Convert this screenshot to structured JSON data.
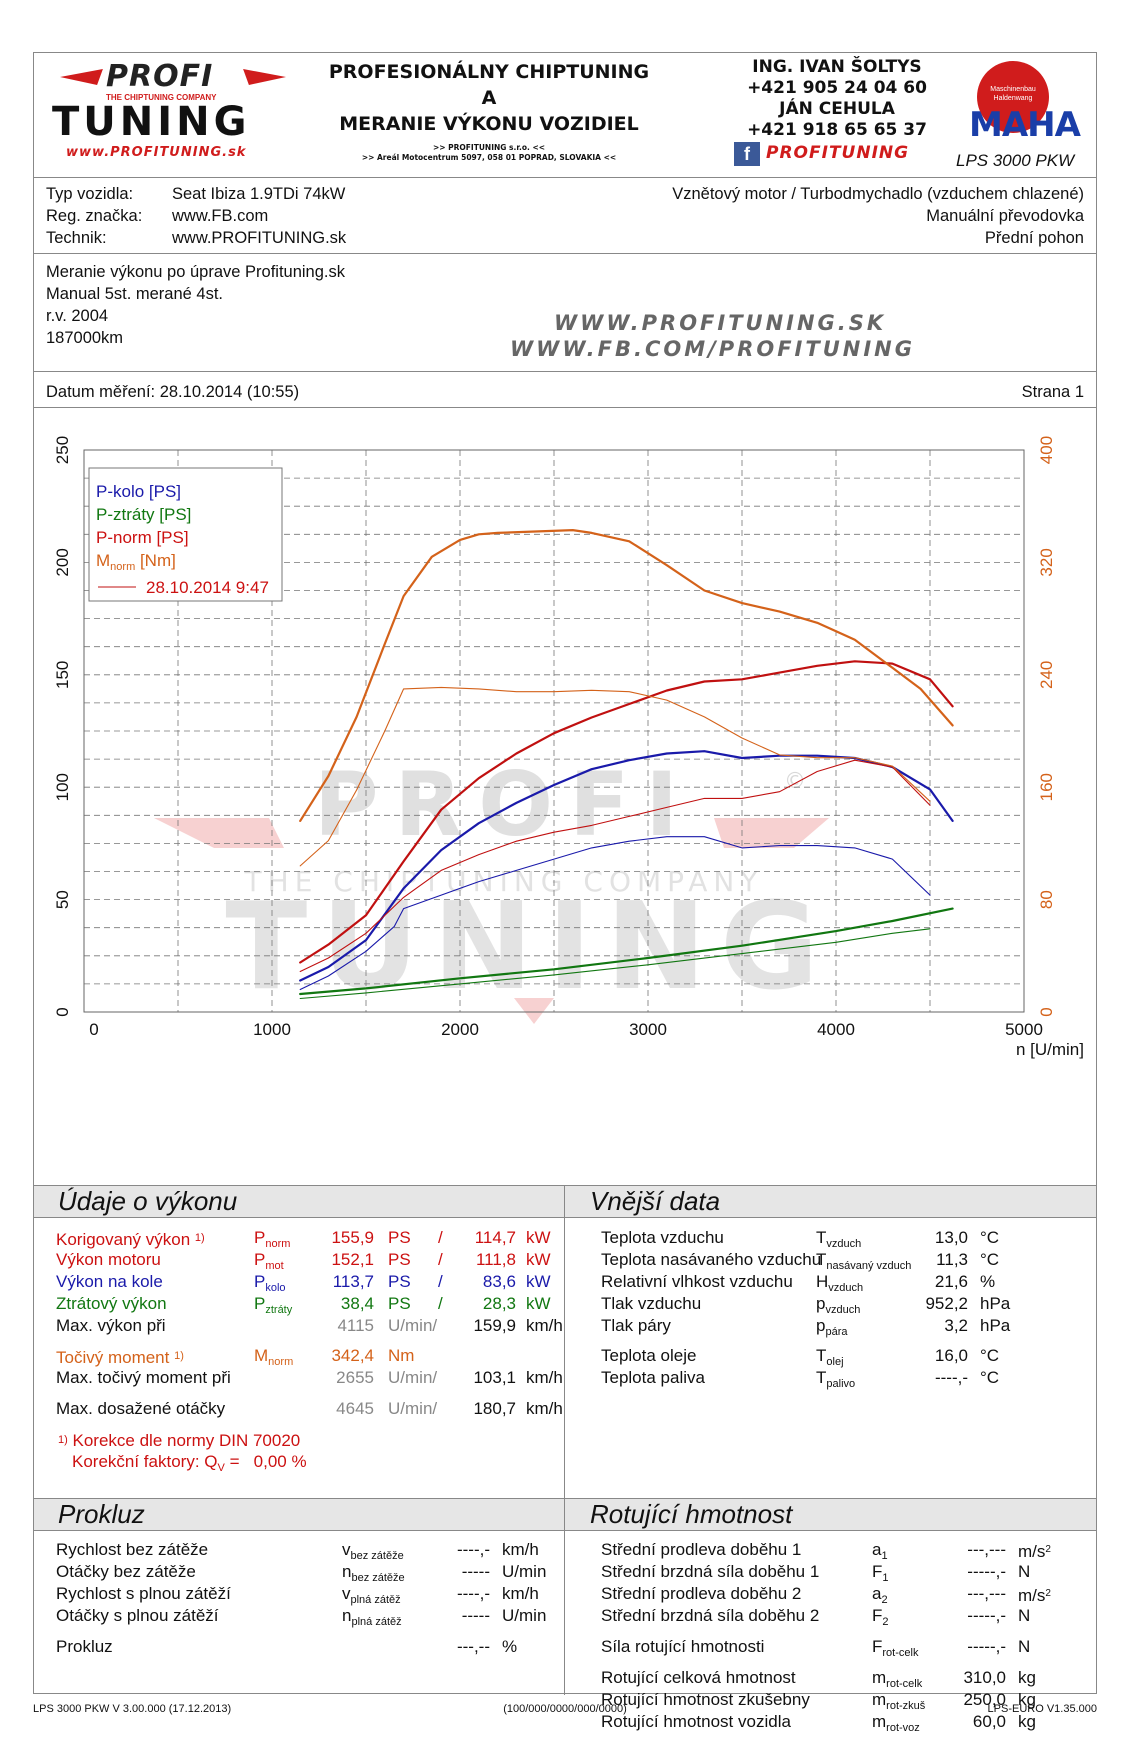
{
  "header": {
    "logo_top": "PROFI",
    "logo_tagline": "THE CHIPTUNING COMPANY",
    "logo_bottom": "TUNING",
    "logo_url": "www.PROFITUNING.sk",
    "center_line1": "PROFESIONÁLNY CHIPTUNING",
    "center_line2": "A",
    "center_line3": "MERANIE VÝKONU VOZIDIEL",
    "center_small1": ">> PROFITUNING s.r.o. <<",
    "center_small2": ">> Areál Motocentrum 5097, 058 01 POPRAD, SLOVAKIA <<",
    "contact_name1": "ING. IVAN ŠOLTYS",
    "contact_phone1": "+421 905 24 04 60",
    "contact_name2": "JÁN CEHULA",
    "contact_phone2": "+421 918 65 65 37",
    "social_brand": "PROFITUNING",
    "maha_ring": "Maschinenbau Haldenwang",
    "maha_text": "MAHA",
    "lps_model": "LPS 3000 PKW"
  },
  "vehicle": {
    "type_label": "Typ vozidla:",
    "type_value": "Seat Ibiza 1.9TDi 74kW",
    "reg_label": "Reg. značka:",
    "reg_value": "www.FB.com",
    "tech_label": "Technik:",
    "tech_value": "www.PROFITUNING.sk",
    "engine": "Vznětový motor / Turbodmychadlo (vzduchem chlazené)",
    "gearbox": "Manuální převodovka",
    "drive": "Přední pohon"
  },
  "notes": {
    "line1": "Meranie výkonu po úprave Profituning.sk",
    "line2": "Manual 5st. merané 4st.",
    "line3": "r.v. 2004",
    "line4": "187000km",
    "web1": "WWW.PROFITUNING.SK",
    "web2": "WWW.FB.COM/PROFITUNING"
  },
  "date_row": {
    "date_label": "Datum měření: 28.10.2014 (10:55)",
    "page_label": "Strana 1"
  },
  "watermark": {
    "top": "PROFI",
    "tagline": "THE CHIPTUNING COMPANY",
    "bottom": "TUNING",
    "copyright": "©"
  },
  "chart_data": {
    "type": "line",
    "xlabel": "n [U/min]",
    "ylabel": "",
    "xlim": [
      0,
      5000
    ],
    "ylim": [
      0,
      250
    ],
    "ylim_right": [
      0,
      400
    ],
    "x_ticks": [
      0,
      1000,
      2000,
      3000,
      4000,
      5000
    ],
    "y_ticks": [
      0,
      50,
      100,
      150,
      200,
      250
    ],
    "y_ticks_right": [
      0,
      80,
      160,
      240,
      320,
      400
    ],
    "grid": true,
    "legend_position": "top-left",
    "legend": {
      "entries": [
        {
          "text": "P-kolo [PS]",
          "color": "#1a1aaa"
        },
        {
          "text": "P-ztráty [PS]",
          "color": "#117711"
        },
        {
          "text": "P-norm [PS]",
          "color": "#cc1111"
        },
        {
          "text": "M",
          "sub": "norm",
          "suffix": " [Nm]",
          "color": "#d4621a"
        }
      ],
      "compare_label": "28.10.2014 9:47"
    },
    "series": [
      {
        "name": "P-norm [PS]",
        "color": "#c01010",
        "axis": "left",
        "width": 2.2,
        "x": [
          1150,
          1300,
          1500,
          1700,
          1900,
          2100,
          2300,
          2500,
          2700,
          2900,
          3100,
          3300,
          3500,
          3700,
          3900,
          4100,
          4300,
          4500,
          4620
        ],
        "y": [
          22,
          30,
          43,
          67,
          90,
          104,
          115,
          124,
          131,
          137,
          143,
          147,
          148,
          151,
          154,
          156,
          155,
          148,
          136
        ]
      },
      {
        "name": "P-kolo [PS]",
        "color": "#1a1aaa",
        "axis": "left",
        "width": 2.2,
        "x": [
          1150,
          1300,
          1500,
          1700,
          1900,
          2100,
          2300,
          2500,
          2700,
          2900,
          3100,
          3300,
          3500,
          3700,
          3900,
          4100,
          4300,
          4500,
          4620
        ],
        "y": [
          14,
          20,
          32,
          55,
          72,
          84,
          93,
          101,
          108,
          112,
          115,
          116,
          113,
          114,
          114,
          113,
          109,
          99,
          85
        ]
      },
      {
        "name": "P-ztráty [PS]",
        "color": "#117711",
        "axis": "left",
        "width": 2.2,
        "x": [
          1150,
          1500,
          2000,
          2500,
          3000,
          3500,
          4000,
          4300,
          4620
        ],
        "y": [
          8,
          10.5,
          15,
          19,
          24,
          29.5,
          36,
          40.5,
          46
        ]
      },
      {
        "name": "M norm [Nm]",
        "color": "#d4621a",
        "axis": "right",
        "width": 2.2,
        "x": [
          1150,
          1300,
          1450,
          1600,
          1700,
          1850,
          2000,
          2100,
          2200,
          2400,
          2600,
          2700,
          2900,
          3100,
          3300,
          3500,
          3700,
          3900,
          4100,
          4300,
          4450,
          4620
        ],
        "y": [
          136,
          168,
          210,
          262,
          296,
          324,
          336,
          340,
          341,
          342,
          343,
          341,
          335,
          318,
          300,
          291,
          285,
          277,
          265,
          245,
          230,
          204
        ]
      },
      {
        "name": "P-norm 28.10.2014 9:47",
        "color": "#c01010",
        "axis": "left",
        "width": 1.1,
        "x": [
          1150,
          1300,
          1500,
          1700,
          1900,
          2100,
          2300,
          2500,
          2700,
          2900,
          3100,
          3300,
          3500,
          3700,
          3900,
          4100,
          4300,
          4500
        ],
        "y": [
          18,
          24,
          35,
          51,
          63,
          70,
          76,
          80,
          83,
          87,
          91,
          95,
          95,
          98,
          107,
          112,
          109,
          92
        ]
      },
      {
        "name": "P-kolo 28.10.2014 9:47",
        "color": "#1a1aaa",
        "axis": "left",
        "width": 1.1,
        "x": [
          1150,
          1300,
          1500,
          1650,
          1700,
          1900,
          2100,
          2300,
          2500,
          2700,
          2900,
          3100,
          3300,
          3500,
          3700,
          3900,
          4100,
          4300,
          4500
        ],
        "y": [
          10,
          16,
          27,
          38,
          46,
          52,
          58,
          63,
          68,
          73,
          76,
          78,
          78,
          73,
          74,
          74,
          73,
          68,
          52
        ]
      },
      {
        "name": "P-ztráty 28.10.2014 9:47",
        "color": "#117711",
        "axis": "left",
        "width": 1.1,
        "x": [
          1150,
          1500,
          2000,
          2500,
          3000,
          3500,
          4000,
          4300,
          4500
        ],
        "y": [
          6,
          8.5,
          12.5,
          16.5,
          21,
          26,
          31,
          35,
          37
        ]
      },
      {
        "name": "M norm 28.10.2014 9:47",
        "color": "#d4621a",
        "axis": "right",
        "width": 1.1,
        "x": [
          1150,
          1300,
          1450,
          1600,
          1700,
          1900,
          2100,
          2300,
          2500,
          2700,
          2900,
          3100,
          3300,
          3500,
          3700,
          3900,
          4100,
          4300,
          4500
        ],
        "y": [
          104,
          122,
          158,
          200,
          230,
          231,
          230,
          228,
          228,
          229,
          228,
          222,
          210,
          195,
          183,
          181,
          181,
          175,
          150
        ]
      }
    ]
  },
  "performance": {
    "title": "Údaje o výkonu",
    "corrected": {
      "label": "Korigovaný výkon",
      "note": "1)",
      "sym": "P",
      "sub": "norm",
      "ps": "155,9",
      "ps_unit": "PS",
      "sep": "/",
      "kw": "114,7",
      "kw_unit": "kW"
    },
    "engine": {
      "label": "Výkon motoru",
      "sym": "P",
      "sub": "mot",
      "ps": "152,1",
      "ps_unit": "PS",
      "sep": "/",
      "kw": "111,8",
      "kw_unit": "kW"
    },
    "wheel": {
      "label": "Výkon na kole",
      "sym": "P",
      "sub": "kolo",
      "ps": "113,7",
      "ps_unit": "PS",
      "sep": "/",
      "kw": "83,6",
      "kw_unit": "kW"
    },
    "loss": {
      "label": "Ztrátový výkon",
      "sym": "P",
      "sub": "ztráty",
      "ps": "38,4",
      "ps_unit": "PS",
      "sep": "/",
      "kw": "28,3",
      "kw_unit": "kW"
    },
    "max_power_at": {
      "label": "Max. výkon při",
      "rpm": "4115",
      "rpm_unit": "U/min/",
      "speed": "159,9",
      "speed_unit": "km/h"
    },
    "torque": {
      "label": "Točivý moment",
      "note": "1)",
      "sym": "M",
      "sub": "norm",
      "value": "342,4",
      "unit": "Nm"
    },
    "max_torque_at": {
      "label": "Max. točivý moment při",
      "rpm": "2655",
      "rpm_unit": "U/min/",
      "speed": "103,1",
      "speed_unit": "km/h"
    },
    "max_rpm": {
      "label": "Max. dosažené otáčky",
      "rpm": "4645",
      "rpm_unit": "U/min/",
      "speed": "180,7",
      "speed_unit": "km/h"
    },
    "norm_note_num": "1)",
    "norm_note": "Korekce dle normy DIN 70020",
    "factor_label": "Korekční faktory: Q",
    "factor_sub": "V",
    "factor_eq": " =",
    "factor_value": "0,00 %"
  },
  "external": {
    "title": "Vnější data",
    "rows": [
      {
        "label": "Teplota vzduchu",
        "sym": "T",
        "sub": "vzduch",
        "value": "13,0",
        "unit": "°C"
      },
      {
        "label": "Teplota nasávaného vzduchu",
        "sym": "T",
        "sub": "nasávaný vzduch",
        "value": "11,3",
        "unit": "°C"
      },
      {
        "label": "Relativní vlhkost vzduchu",
        "sym": "H",
        "sub": "vzduch",
        "value": "21,6",
        "unit": "%"
      },
      {
        "label": "Tlak vzduchu",
        "sym": "p",
        "sub": "vzduch",
        "value": "952,2",
        "unit": "hPa"
      },
      {
        "label": "Tlak páry",
        "sym": "p",
        "sub": "pára",
        "value": "3,2",
        "unit": "hPa"
      },
      {
        "label": "Teplota oleje",
        "sym": "T",
        "sub": "olej",
        "value": "16,0",
        "unit": "°C"
      },
      {
        "label": "Teplota paliva",
        "sym": "T",
        "sub": "palivo",
        "value": "----,-",
        "unit": "°C"
      }
    ]
  },
  "slip": {
    "title": "Prokluz",
    "rows": [
      {
        "label": "Rychlost bez zátěže",
        "sym": "v",
        "sub": "bez zátěže",
        "value": "----,-",
        "unit": "km/h"
      },
      {
        "label": "Otáčky bez zátěže",
        "sym": "n",
        "sub": "bez zátěže",
        "value": "-----",
        "unit": "U/min"
      },
      {
        "label": "Rychlost s plnou zátěží",
        "sym": "v",
        "sub": "plná zátěž",
        "value": "----,-",
        "unit": "km/h"
      },
      {
        "label": "Otáčky s plnou zátěží",
        "sym": "n",
        "sub": "plná zátěž",
        "value": "-----",
        "unit": "U/min"
      },
      {
        "label": "Prokluz",
        "sym": "",
        "sub": "",
        "value": "---,--",
        "unit": "%"
      }
    ]
  },
  "rotating": {
    "title": "Rotující hmotnost",
    "rows": [
      {
        "label": "Střední prodleva doběhu 1",
        "sym": "a",
        "sub": "1",
        "value": "---,---",
        "unit": "m/s",
        "sup": "2"
      },
      {
        "label": "Střední brzdná síla doběhu 1",
        "sym": "F",
        "sub": "1",
        "value": "-----,-",
        "unit": "N",
        "sup": ""
      },
      {
        "label": "Střední prodleva doběhu 2",
        "sym": "a",
        "sub": "2",
        "value": "---,---",
        "unit": "m/s",
        "sup": "2"
      },
      {
        "label": "Střední brzdná síla doběhu 2",
        "sym": "F",
        "sub": "2",
        "value": "-----,-",
        "unit": "N",
        "sup": ""
      },
      {
        "label": "Síla rotující hmotnosti",
        "sym": "F",
        "sub": "rot-celk",
        "value": "-----,-",
        "unit": "N",
        "sup": ""
      },
      {
        "label": "Rotující celková hmotnost",
        "sym": "m",
        "sub": "rot-celk",
        "value": "310,0",
        "unit": "kg",
        "sup": ""
      },
      {
        "label": "Rotující hmotnost zkušebny",
        "sym": "m",
        "sub": "rot-zkuš",
        "value": "250,0",
        "unit": "kg",
        "sup": ""
      },
      {
        "label": "Rotující hmotnost vozidla",
        "sym": "m",
        "sub": "rot-voz",
        "value": "60,0",
        "unit": "kg",
        "sup": ""
      }
    ]
  },
  "footer": {
    "left": "LPS 3000 PKW V 3.00.000 (17.12.2013)",
    "center": "(100/000/0000/000/0000)",
    "right": "LPS-EURO V1.35.000"
  }
}
